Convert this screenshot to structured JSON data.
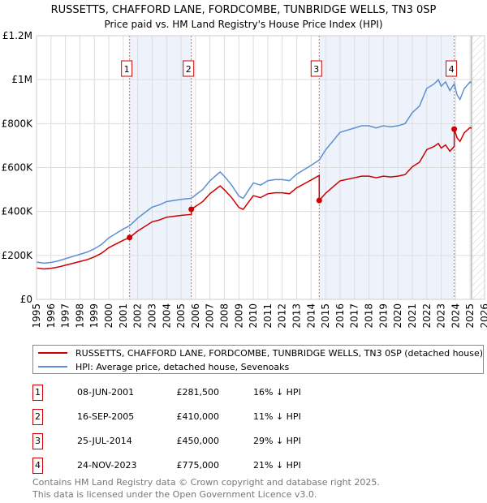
{
  "chart_data": {
    "type": "line",
    "title": "RUSSETTS, CHAFFORD LANE, FORDCOMBE, TUNBRIDGE WELLS, TN3 0SP",
    "subtitle": "Price paid vs. HM Land Registry's House Price Index (HPI)",
    "xlim": [
      1995,
      2026
    ],
    "ylim": [
      0,
      1200000
    ],
    "y_ticks": [
      {
        "v": 0,
        "label": "£0"
      },
      {
        "v": 200000,
        "label": "£200K"
      },
      {
        "v": 400000,
        "label": "£400K"
      },
      {
        "v": 600000,
        "label": "£600K"
      },
      {
        "v": 800000,
        "label": "£800K"
      },
      {
        "v": 1000000,
        "label": "£1M"
      },
      {
        "v": 1200000,
        "label": "£1.2M"
      }
    ],
    "x_ticks": [
      "1995",
      "1996",
      "1997",
      "1998",
      "1999",
      "2000",
      "2001",
      "2002",
      "2003",
      "2004",
      "2005",
      "2006",
      "2007",
      "2008",
      "2009",
      "2010",
      "2011",
      "2012",
      "2013",
      "2014",
      "2015",
      "2016",
      "2017",
      "2018",
      "2019",
      "2020",
      "2021",
      "2022",
      "2023",
      "2024",
      "2025",
      "2026"
    ],
    "grid": true,
    "data_end": 2025.1,
    "colors": {
      "property": "#cc0000",
      "hpi": "#5b8fd4",
      "shade": "#eef3fb",
      "vline": "#e06060"
    },
    "hpi_series": {
      "name": "HPI: Average price, detached house, Sevenoaks",
      "x": [
        1995,
        1995.5,
        1996,
        1996.5,
        1997,
        1997.5,
        1998,
        1998.5,
        1999,
        1999.5,
        2000,
        2000.5,
        2001,
        2001.44,
        2002,
        2002.5,
        2003,
        2003.5,
        2004,
        2004.5,
        2005,
        2005.7,
        2006,
        2006.5,
        2007,
        2007.7,
        2008,
        2008.5,
        2009,
        2009.3,
        2009.7,
        2010,
        2010.5,
        2011,
        2011.5,
        2012,
        2012.5,
        2013,
        2013.5,
        2014,
        2014.56,
        2015,
        2015.5,
        2016,
        2016.5,
        2017,
        2017.5,
        2018,
        2018.5,
        2019,
        2019.5,
        2020,
        2020.5,
        2021,
        2021.5,
        2022,
        2022.5,
        2022.8,
        2023,
        2023.3,
        2023.6,
        2023.9,
        2024.1,
        2024.3,
        2024.6,
        2025,
        2025.1
      ],
      "values": [
        170000,
        165000,
        168000,
        175000,
        185000,
        195000,
        205000,
        215000,
        230000,
        250000,
        280000,
        300000,
        320000,
        335000,
        370000,
        395000,
        420000,
        430000,
        445000,
        450000,
        455000,
        460000,
        475000,
        500000,
        540000,
        580000,
        560000,
        520000,
        470000,
        460000,
        500000,
        530000,
        520000,
        540000,
        545000,
        545000,
        540000,
        570000,
        590000,
        610000,
        634000,
        680000,
        720000,
        760000,
        770000,
        780000,
        790000,
        790000,
        780000,
        790000,
        785000,
        790000,
        800000,
        850000,
        880000,
        960000,
        980000,
        1000000,
        970000,
        990000,
        950000,
        981000,
        930000,
        910000,
        960000,
        990000,
        985000
      ]
    },
    "property_series": {
      "name": "RUSSETTS, CHAFFORD LANE, FORDCOMBE, TUNBRIDGE WELLS, TN3 0SP (detached house)"
    },
    "sales": [
      {
        "n": "1",
        "x": 2001.44,
        "date": "08-JUN-2001",
        "price": 281500,
        "price_label": "£281,500",
        "pct": "16% ↓ HPI"
      },
      {
        "n": "2",
        "x": 2005.71,
        "date": "16-SEP-2005",
        "price": 410000,
        "price_label": "£410,000",
        "pct": "11% ↓ HPI"
      },
      {
        "n": "3",
        "x": 2014.56,
        "date": "25-JUL-2014",
        "price": 450000,
        "price_label": "£450,000",
        "pct": "29% ↓ HPI"
      },
      {
        "n": "4",
        "x": 2023.9,
        "date": "24-NOV-2023",
        "price": 775000,
        "price_label": "£775,000",
        "pct": "21% ↓ HPI"
      }
    ]
  },
  "legend": {
    "property": "RUSSETTS, CHAFFORD LANE, FORDCOMBE, TUNBRIDGE WELLS, TN3 0SP (detached house)",
    "hpi": "HPI: Average price, detached house, Sevenoaks"
  },
  "footer": {
    "line1": "Contains HM Land Registry data © Crown copyright and database right 2025.",
    "line2": "This data is licensed under the Open Government Licence v3.0."
  }
}
